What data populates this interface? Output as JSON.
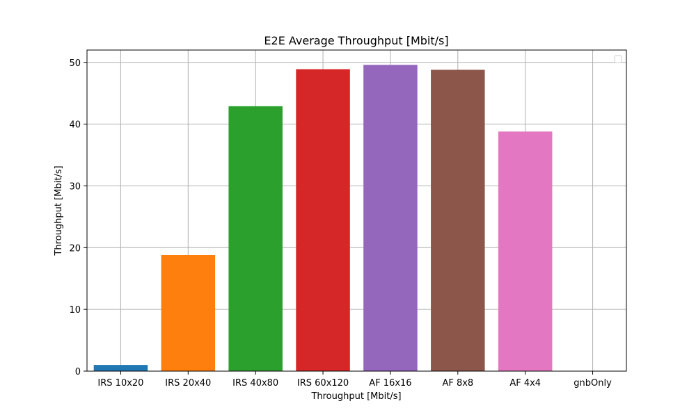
{
  "chart_data": {
    "type": "bar",
    "title": "E2E Average Throughput [Mbit/s]",
    "xlabel": "Throughput [Mbit/s]",
    "ylabel": "Throughput [Mbit/s]",
    "categories": [
      "IRS 10x20",
      "IRS 20x40",
      "IRS 40x80",
      "IRS 60x120",
      "AF 16x16",
      "AF 8x8",
      "AF 4x4",
      "gnbOnly"
    ],
    "values": [
      1.0,
      18.8,
      42.9,
      48.9,
      49.6,
      48.8,
      38.8,
      0
    ],
    "colors": [
      "#1f77b4",
      "#ff7f0e",
      "#2ca02c",
      "#d62728",
      "#9467bd",
      "#8c564b",
      "#e377c2",
      "#7f7f7f"
    ],
    "ylim": [
      0,
      52
    ],
    "yticks": [
      0,
      10,
      20,
      30,
      40,
      50
    ],
    "grid": true,
    "legend": "top-right"
  }
}
